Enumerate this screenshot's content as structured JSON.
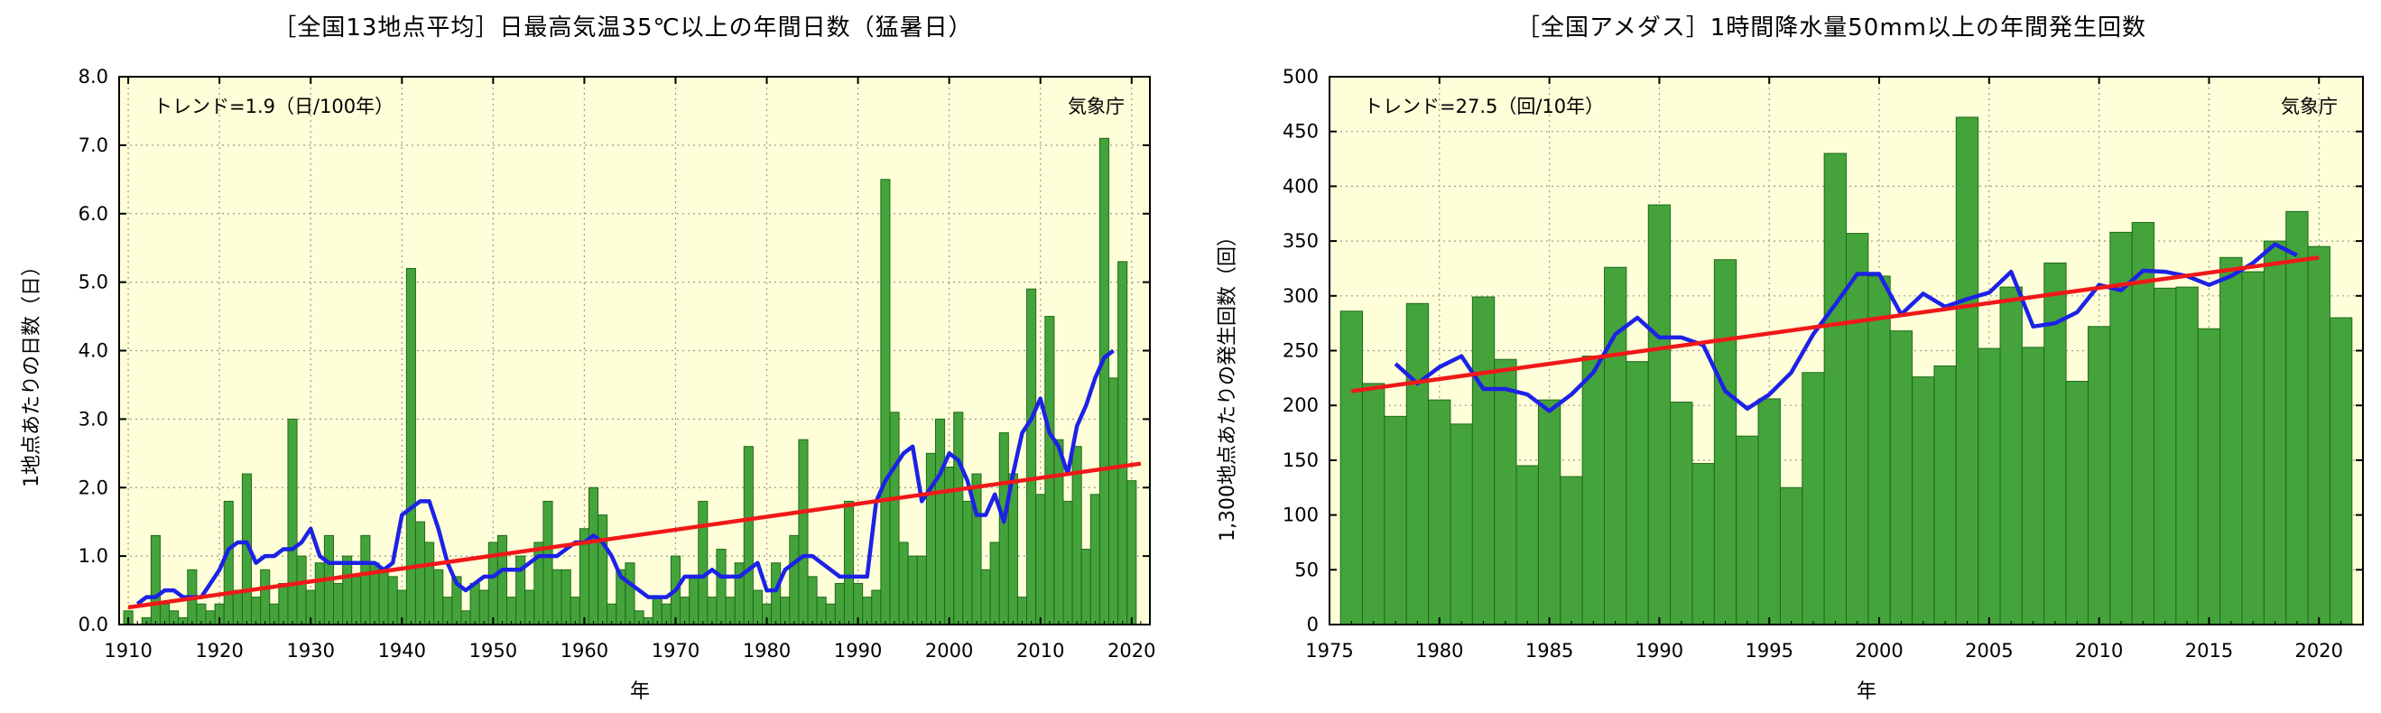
{
  "chart_data": [
    {
      "type": "bar",
      "title": "［全国13地点平均］日最高気温35℃以上の年間日数（猛暑日）",
      "xlabel": "年",
      "ylabel": "1地点あたりの日数（日）",
      "trend_label": "トレンド=1.9（日/100年）",
      "source_label": "気象庁",
      "xlim": [
        1909,
        2022
      ],
      "ylim": [
        0,
        8
      ],
      "yticks": [
        "0.0",
        "1.0",
        "2.0",
        "3.0",
        "4.0",
        "5.0",
        "6.0",
        "7.0",
        "8.0"
      ],
      "xticks": [
        "1910",
        "1920",
        "1930",
        "1940",
        "1950",
        "1960",
        "1970",
        "1980",
        "1990",
        "2000",
        "2010",
        "2020"
      ],
      "grid": true,
      "colors": {
        "plot_bg": "#fefed8",
        "bar_fill": "#45a33c",
        "bar_edge": "#1f6b1a",
        "moving_avg": "#1c22e6",
        "trend": "#f01818"
      },
      "x": [
        1910,
        1911,
        1912,
        1913,
        1914,
        1915,
        1916,
        1917,
        1918,
        1919,
        1920,
        1921,
        1922,
        1923,
        1924,
        1925,
        1926,
        1927,
        1928,
        1929,
        1930,
        1931,
        1932,
        1933,
        1934,
        1935,
        1936,
        1937,
        1938,
        1939,
        1940,
        1941,
        1942,
        1943,
        1944,
        1945,
        1946,
        1947,
        1948,
        1949,
        1950,
        1951,
        1952,
        1953,
        1954,
        1955,
        1956,
        1957,
        1958,
        1959,
        1960,
        1961,
        1962,
        1963,
        1964,
        1965,
        1966,
        1967,
        1968,
        1969,
        1970,
        1971,
        1972,
        1973,
        1974,
        1975,
        1976,
        1977,
        1978,
        1979,
        1980,
        1981,
        1982,
        1983,
        1984,
        1985,
        1986,
        1987,
        1988,
        1989,
        1990,
        1991,
        1992,
        1993,
        1994,
        1995,
        1996,
        1997,
        1998,
        1999,
        2000,
        2001,
        2002,
        2003,
        2004,
        2005,
        2006,
        2007,
        2008,
        2009,
        2010,
        2011,
        2012,
        2013,
        2014,
        2015,
        2016,
        2017,
        2018,
        2019,
        2020,
        2021
      ],
      "series": [
        {
          "name": "",
          "type": "bar",
          "values": [
            0.2,
            0.0,
            0.1,
            1.3,
            0.3,
            0.2,
            0.1,
            0.8,
            0.3,
            0.2,
            0.3,
            1.8,
            0.5,
            2.2,
            0.4,
            0.8,
            0.3,
            0.6,
            3.0,
            1.0,
            0.5,
            0.9,
            1.3,
            0.6,
            1.0,
            0.7,
            1.3,
            0.9,
            0.8,
            0.7,
            0.5,
            5.2,
            1.5,
            1.2,
            0.8,
            0.4,
            0.7,
            0.2,
            0.6,
            0.5,
            1.2,
            1.3,
            0.4,
            1.0,
            0.5,
            1.2,
            1.8,
            0.8,
            0.8,
            0.4,
            1.4,
            2.0,
            1.6,
            0.3,
            0.8,
            0.9,
            0.2,
            0.1,
            0.4,
            0.3,
            1.0,
            0.4,
            0.7,
            1.8,
            0.4,
            1.1,
            0.4,
            0.9,
            2.6,
            0.5,
            0.3,
            0.9,
            0.4,
            1.3,
            2.7,
            0.7,
            0.4,
            0.3,
            0.6,
            1.8,
            0.6,
            0.4,
            0.5,
            6.5,
            3.1,
            1.2,
            1.0,
            1.0,
            2.5,
            3.0,
            2.3,
            3.1,
            1.8,
            2.2,
            0.8,
            1.2,
            2.8,
            2.2,
            0.4,
            4.9,
            1.9,
            4.5,
            2.7,
            1.8,
            2.6,
            1.1,
            1.9,
            7.1,
            3.6,
            5.3,
            2.1,
            0
          ]
        },
        {
          "name": "",
          "type": "line",
          "values": [
            null,
            0.3,
            0.4,
            0.4,
            0.5,
            0.5,
            0.4,
            0.4,
            0.4,
            0.6,
            0.8,
            1.1,
            1.2,
            1.2,
            0.9,
            1.0,
            1.0,
            1.1,
            1.1,
            1.2,
            1.4,
            1.0,
            0.9,
            0.9,
            0.9,
            0.9,
            0.9,
            0.9,
            0.8,
            0.9,
            1.6,
            1.7,
            1.8,
            1.8,
            1.4,
            0.9,
            0.6,
            0.5,
            0.6,
            0.7,
            0.7,
            0.8,
            0.8,
            0.8,
            0.9,
            1.0,
            1.0,
            1.0,
            1.1,
            1.2,
            1.2,
            1.3,
            1.2,
            1.0,
            0.7,
            0.6,
            0.5,
            0.4,
            0.4,
            0.4,
            0.5,
            0.7,
            0.7,
            0.7,
            0.8,
            0.7,
            0.7,
            0.7,
            0.8,
            0.9,
            0.5,
            0.5,
            0.8,
            0.9,
            1.0,
            1.0,
            0.9,
            0.8,
            0.7,
            0.7,
            0.7,
            0.7,
            1.8,
            2.1,
            2.3,
            2.5,
            2.6,
            1.8,
            2.0,
            2.2,
            2.5,
            2.4,
            2.1,
            1.6,
            1.6,
            1.9,
            1.5,
            2.2,
            2.8,
            3.0,
            3.3,
            2.8,
            2.6,
            2.2,
            2.9,
            3.2,
            3.6,
            3.9,
            4.0,
            null,
            null,
            null
          ]
        },
        {
          "name": "",
          "type": "trend",
          "start": [
            1910,
            0.25
          ],
          "end": [
            2021,
            2.35
          ]
        }
      ]
    },
    {
      "type": "bar",
      "title": "［全国アメダス］1時間降水量50mm以上の年間発生回数",
      "xlabel": "年",
      "ylabel": "1,300地点あたりの発生回数（回）",
      "trend_label": "トレンド=27.5（回/10年）",
      "source_label": "気象庁",
      "xlim": [
        1975,
        2022
      ],
      "ylim": [
        0,
        500
      ],
      "yticks": [
        "0",
        "50",
        "100",
        "150",
        "200",
        "250",
        "300",
        "350",
        "400",
        "450",
        "500"
      ],
      "xticks": [
        "1975",
        "1980",
        "1985",
        "1990",
        "1995",
        "2000",
        "2005",
        "2010",
        "2015",
        "2020"
      ],
      "grid": true,
      "colors": {
        "plot_bg": "#fefed8",
        "bar_fill": "#45a33c",
        "bar_edge": "#1f6b1a",
        "moving_avg": "#1c22e6",
        "trend": "#f01818"
      },
      "x": [
        1976,
        1977,
        1978,
        1979,
        1980,
        1981,
        1982,
        1983,
        1984,
        1985,
        1986,
        1987,
        1988,
        1989,
        1990,
        1991,
        1992,
        1993,
        1994,
        1995,
        1996,
        1997,
        1998,
        1999,
        2000,
        2001,
        2002,
        2003,
        2004,
        2005,
        2006,
        2007,
        2008,
        2009,
        2010,
        2011,
        2012,
        2013,
        2014,
        2015,
        2016,
        2017,
        2018,
        2019,
        2020,
        2021
      ],
      "series": [
        {
          "name": "",
          "type": "bar",
          "values": [
            286,
            220,
            190,
            293,
            205,
            183,
            299,
            242,
            145,
            205,
            135,
            245,
            326,
            240,
            383,
            203,
            147,
            333,
            172,
            206,
            125,
            230,
            430,
            357,
            318,
            268,
            226,
            236,
            463,
            252,
            308,
            253,
            330,
            222,
            272,
            358,
            367,
            307,
            308,
            270,
            335,
            322,
            350,
            377,
            345,
            280
          ]
        },
        {
          "name": "",
          "type": "line",
          "values": [
            null,
            null,
            238,
            220,
            235,
            245,
            215,
            215,
            210,
            195,
            210,
            230,
            265,
            280,
            262,
            262,
            255,
            213,
            197,
            210,
            230,
            265,
            292,
            320,
            320,
            283,
            302,
            290,
            297,
            303,
            322,
            272,
            275,
            285,
            310,
            305,
            323,
            322,
            318,
            310,
            318,
            330,
            347,
            337,
            null,
            null
          ]
        },
        {
          "name": "",
          "type": "trend",
          "start": [
            1976,
            213
          ],
          "end": [
            2020,
            335
          ]
        }
      ]
    }
  ]
}
